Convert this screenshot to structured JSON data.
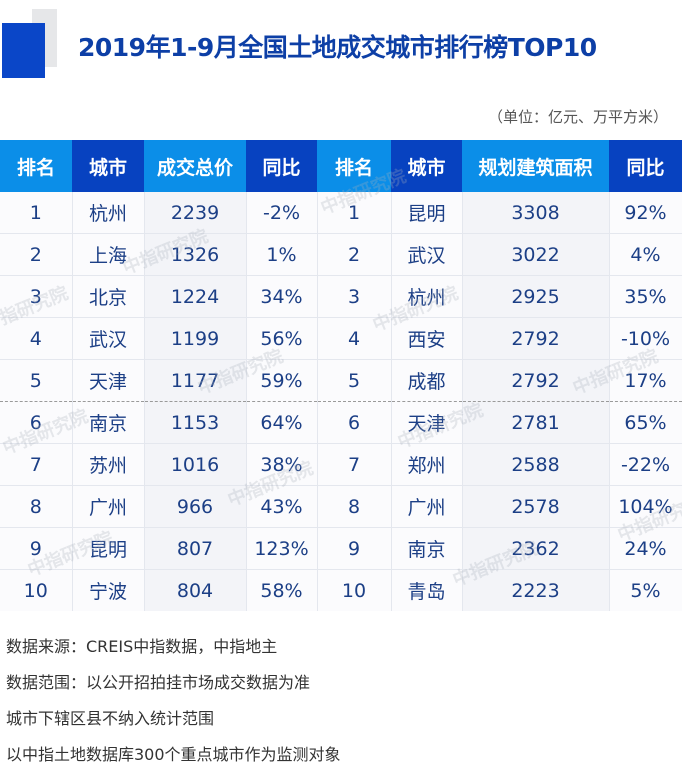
{
  "header": {
    "title": "2019年1-9月全国土地成交城市排行榜TOP10",
    "unit": "（单位：亿元、万平方米）",
    "accent_color": "#0a46c8"
  },
  "table": {
    "columns": [
      "排名",
      "城市",
      "成交总价",
      "同比",
      "排名",
      "城市",
      "规划建筑面积",
      "同比"
    ],
    "left_group": "成交总价",
    "right_group": "规划建筑面积",
    "rows": [
      {
        "rank_a": "1",
        "city_a": "杭州",
        "value_a": "2239",
        "yoy_a": "-2%",
        "rank_b": "1",
        "city_b": "昆明",
        "value_b": "3308",
        "yoy_b": "92%"
      },
      {
        "rank_a": "2",
        "city_a": "上海",
        "value_a": "1326",
        "yoy_a": "1%",
        "rank_b": "2",
        "city_b": "武汉",
        "value_b": "3022",
        "yoy_b": "4%"
      },
      {
        "rank_a": "3",
        "city_a": "北京",
        "value_a": "1224",
        "yoy_a": "34%",
        "rank_b": "3",
        "city_b": "杭州",
        "value_b": "2925",
        "yoy_b": "35%"
      },
      {
        "rank_a": "4",
        "city_a": "武汉",
        "value_a": "1199",
        "yoy_a": "56%",
        "rank_b": "4",
        "city_b": "西安",
        "value_b": "2792",
        "yoy_b": "-10%"
      },
      {
        "rank_a": "5",
        "city_a": "天津",
        "value_a": "1177",
        "yoy_a": "59%",
        "rank_b": "5",
        "city_b": "成都",
        "value_b": "2792",
        "yoy_b": "17%"
      },
      {
        "rank_a": "6",
        "city_a": "南京",
        "value_a": "1153",
        "yoy_a": "64%",
        "rank_b": "6",
        "city_b": "天津",
        "value_b": "2781",
        "yoy_b": "65%"
      },
      {
        "rank_a": "7",
        "city_a": "苏州",
        "value_a": "1016",
        "yoy_a": "38%",
        "rank_b": "7",
        "city_b": "郑州",
        "value_b": "2588",
        "yoy_b": "-22%"
      },
      {
        "rank_a": "8",
        "city_a": "广州",
        "value_a": "966",
        "yoy_a": "43%",
        "rank_b": "8",
        "city_b": "广州",
        "value_b": "2578",
        "yoy_b": "104%"
      },
      {
        "rank_a": "9",
        "city_a": "昆明",
        "value_a": "807",
        "yoy_a": "123%",
        "rank_b": "9",
        "city_b": "南京",
        "value_b": "2362",
        "yoy_b": "24%"
      },
      {
        "rank_a": "10",
        "city_a": "宁波",
        "value_a": "804",
        "yoy_a": "58%",
        "rank_b": "10",
        "city_b": "青岛",
        "value_b": "2223",
        "yoy_b": "5%"
      }
    ]
  },
  "watermark": "中指研究院",
  "notes": [
    "数据来源：CREIS中指数据，中指地主",
    "数据范围：以公开招拍挂市场成交数据为准",
    "城市下辖区县不纳入统计范围",
    "以中指土地数据库300个重点城市作为监测对象"
  ]
}
